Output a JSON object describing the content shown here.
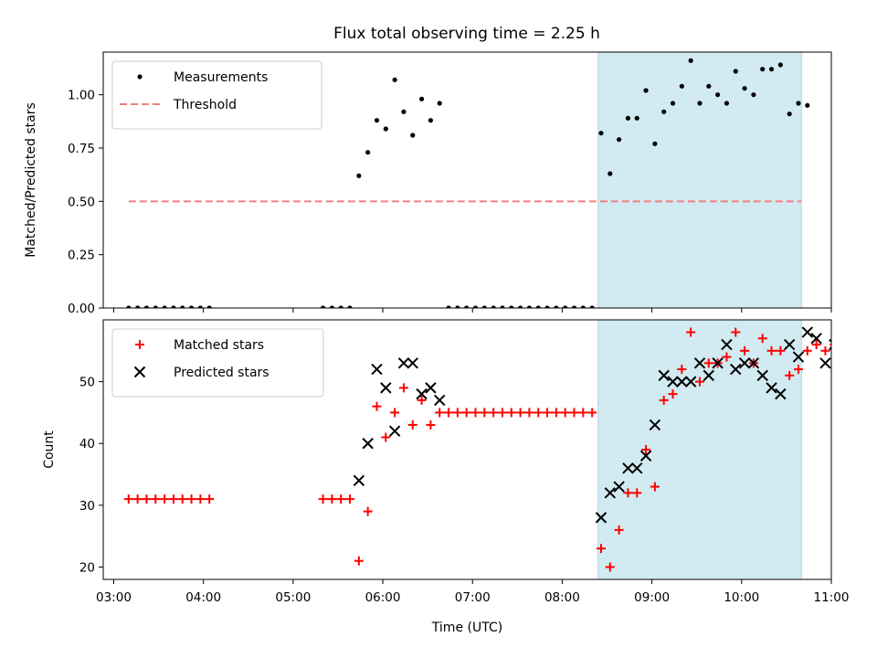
{
  "title": "Flux total observing time = 2.25 h",
  "chart_data": [
    {
      "type": "scatter",
      "ylabel": "Matched/Predicted stars",
      "xlabel": "",
      "xlim": [
        "02:53",
        "11:00"
      ],
      "ylim": [
        0,
        1.2
      ],
      "x_ticks": [
        "03:00",
        "04:00",
        "05:00",
        "06:00",
        "07:00",
        "08:00",
        "09:00",
        "10:00",
        "11:00"
      ],
      "y_ticks": [
        "0.00",
        "0.25",
        "0.50",
        "0.75",
        "1.00"
      ],
      "highlight_region": {
        "start": "08:24",
        "end": "10:40",
        "color": "#add8e6"
      },
      "threshold": {
        "name": "Threshold",
        "value": 0.5,
        "start": "03:10",
        "end": "10:40",
        "color": "#f08080",
        "style": "dashed"
      },
      "legend_position": "upper-left",
      "series": [
        {
          "name": "Measurements",
          "marker": "dot",
          "color": "#000000",
          "x": [
            "03:10",
            "03:16",
            "03:22",
            "03:28",
            "03:34",
            "03:40",
            "03:46",
            "03:52",
            "03:58",
            "04:04",
            "05:20",
            "05:26",
            "05:32",
            "05:38",
            "05:44",
            "05:50",
            "05:56",
            "06:02",
            "06:08",
            "06:14",
            "06:20",
            "06:26",
            "06:32",
            "06:38",
            "06:44",
            "06:50",
            "06:56",
            "07:02",
            "07:08",
            "07:14",
            "07:20",
            "07:26",
            "07:32",
            "07:38",
            "07:44",
            "07:50",
            "07:56",
            "08:02",
            "08:08",
            "08:14",
            "08:20",
            "08:26",
            "08:32",
            "08:38",
            "08:44",
            "08:50",
            "08:56",
            "09:02",
            "09:08",
            "09:14",
            "09:20",
            "09:26",
            "09:32",
            "09:38",
            "09:44",
            "09:50",
            "09:56",
            "10:02",
            "10:08",
            "10:14",
            "10:20",
            "10:26",
            "10:32",
            "10:38",
            "10:44"
          ],
          "y": [
            0,
            0,
            0,
            0,
            0,
            0,
            0,
            0,
            0,
            0,
            0,
            0,
            0,
            0,
            0.62,
            0.73,
            0.88,
            0.84,
            1.07,
            0.92,
            0.81,
            0.98,
            0.88,
            0.96,
            0,
            0,
            0,
            0,
            0,
            0,
            0,
            0,
            0,
            0,
            0,
            0,
            0,
            0,
            0,
            0,
            0,
            0.82,
            0.63,
            0.79,
            0.89,
            0.89,
            1.02,
            0.77,
            0.92,
            0.96,
            1.04,
            1.16,
            0.96,
            1.04,
            1.0,
            0.96,
            1.11,
            1.03,
            1.0,
            1.12,
            1.12,
            1.14,
            0.91,
            0.96,
            0.95
          ]
        }
      ]
    },
    {
      "type": "scatter",
      "ylabel": "Count",
      "xlabel": "Time (UTC)",
      "xlim": [
        "02:53",
        "11:00"
      ],
      "ylim": [
        18,
        60
      ],
      "x_ticks": [
        "03:00",
        "04:00",
        "05:00",
        "06:00",
        "07:00",
        "08:00",
        "09:00",
        "10:00",
        "11:00"
      ],
      "y_ticks": [
        "20",
        "30",
        "40",
        "50"
      ],
      "highlight_region": {
        "start": "08:24",
        "end": "10:40",
        "color": "#add8e6"
      },
      "legend_position": "upper-left",
      "series": [
        {
          "name": "Matched stars",
          "marker": "plus",
          "color": "#ff0000",
          "x": [
            "03:10",
            "03:16",
            "03:22",
            "03:28",
            "03:34",
            "03:40",
            "03:46",
            "03:52",
            "03:58",
            "04:04",
            "05:20",
            "05:26",
            "05:32",
            "05:38",
            "05:44",
            "05:50",
            "05:56",
            "06:02",
            "06:08",
            "06:14",
            "06:20",
            "06:26",
            "06:32",
            "06:38",
            "06:44",
            "06:50",
            "06:56",
            "07:02",
            "07:08",
            "07:14",
            "07:20",
            "07:26",
            "07:32",
            "07:38",
            "07:44",
            "07:50",
            "07:56",
            "08:02",
            "08:08",
            "08:14",
            "08:20",
            "08:26",
            "08:32",
            "08:38",
            "08:44",
            "08:50",
            "08:56",
            "09:02",
            "09:08",
            "09:14",
            "09:20",
            "09:26",
            "09:32",
            "09:38",
            "09:44",
            "09:50",
            "09:56",
            "10:02",
            "10:08",
            "10:14",
            "10:20",
            "10:26",
            "10:32",
            "10:38",
            "10:44"
          ],
          "y": [
            31,
            31,
            31,
            31,
            31,
            31,
            31,
            31,
            31,
            31,
            31,
            31,
            31,
            31,
            21,
            29,
            46,
            41,
            45,
            49,
            43,
            47,
            43,
            45,
            45,
            45,
            45,
            45,
            45,
            45,
            45,
            45,
            45,
            45,
            45,
            45,
            45,
            45,
            45,
            45,
            45,
            23,
            20,
            26,
            32,
            32,
            39,
            33,
            47,
            48,
            52,
            58,
            50,
            53,
            53,
            54,
            58,
            55,
            53,
            57,
            55,
            55,
            51,
            52,
            55
          ]
        },
        {
          "name": "Predicted stars",
          "marker": "x",
          "color": "#000000",
          "x": [
            "05:44",
            "05:50",
            "05:56",
            "06:02",
            "06:08",
            "06:14",
            "06:20",
            "06:26",
            "06:32",
            "06:38",
            "08:26",
            "08:32",
            "08:38",
            "08:44",
            "08:50",
            "08:56",
            "09:02",
            "09:08",
            "09:14",
            "09:20",
            "09:26",
            "09:32",
            "09:38",
            "09:44",
            "09:50",
            "09:56",
            "10:02",
            "10:08",
            "10:14",
            "10:20",
            "10:26",
            "10:32",
            "10:38",
            "10:44"
          ],
          "y": [
            34,
            40,
            52,
            49,
            42,
            53,
            53,
            48,
            49,
            47,
            28,
            32,
            33,
            36,
            36,
            38,
            43,
            51,
            50,
            50,
            50,
            53,
            51,
            53,
            56,
            52,
            53,
            53,
            51,
            49,
            48,
            56,
            54,
            58
          ]
        }
      ]
    }
  ],
  "extra_points": {
    "matched_tail": {
      "x": [
        "10:50",
        "10:56",
        "11:02"
      ],
      "y": [
        56,
        55,
        56
      ]
    },
    "predicted_tail": {
      "x": [
        "10:50",
        "10:56",
        "11:02"
      ],
      "y": [
        57,
        53,
        56
      ]
    }
  }
}
